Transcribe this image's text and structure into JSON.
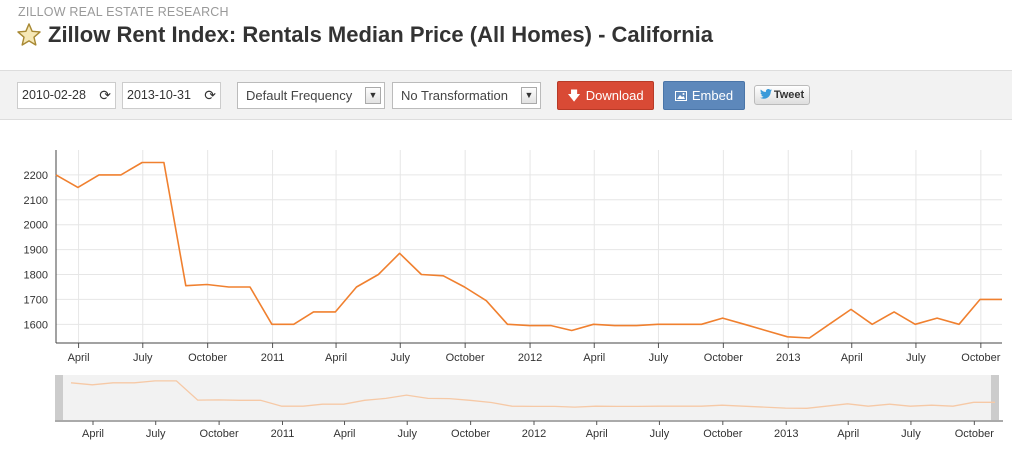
{
  "header": {
    "source": "ZILLOW REAL ESTATE RESEARCH",
    "title": "Zillow Rent Index: Rentals Median Price (All Homes) - California",
    "star_icon": "star-icon"
  },
  "toolbar": {
    "start_date": "2010-02-28",
    "end_date": "2013-10-31",
    "frequency": "Default Frequency",
    "transformation": "No Transformation",
    "download_label": "Download",
    "embed_label": "Embed",
    "tweet_label": "Tweet",
    "download_color": "#d94a35",
    "embed_color": "#5d88bb"
  },
  "chart_data": {
    "type": "line",
    "title": "",
    "xlabel": "",
    "ylabel": "",
    "line_color": "#f0802f",
    "y_ticks": [
      1600,
      1700,
      1800,
      1900,
      2000,
      2100,
      2200
    ],
    "x_tick_labels": [
      {
        "date": "2010-04-01",
        "label": "April"
      },
      {
        "date": "2010-07-01",
        "label": "July"
      },
      {
        "date": "2010-10-01",
        "label": "October"
      },
      {
        "date": "2011-01-01",
        "label": "2011"
      },
      {
        "date": "2011-04-01",
        "label": "April"
      },
      {
        "date": "2011-07-01",
        "label": "July"
      },
      {
        "date": "2011-10-01",
        "label": "October"
      },
      {
        "date": "2012-01-01",
        "label": "2012"
      },
      {
        "date": "2012-04-01",
        "label": "April"
      },
      {
        "date": "2012-07-01",
        "label": "July"
      },
      {
        "date": "2012-10-01",
        "label": "October"
      },
      {
        "date": "2013-01-01",
        "label": "2013"
      },
      {
        "date": "2013-04-01",
        "label": "April"
      },
      {
        "date": "2013-07-01",
        "label": "July"
      },
      {
        "date": "2013-10-01",
        "label": "October"
      }
    ],
    "x_range": [
      "2010-02-28",
      "2013-10-31"
    ],
    "ylim": [
      1525,
      2300
    ],
    "grid": true,
    "series": [
      {
        "points": [
          [
            "2010-02-28",
            2200
          ],
          [
            "2010-03-31",
            2150
          ],
          [
            "2010-04-30",
            2200
          ],
          [
            "2010-05-31",
            2200
          ],
          [
            "2010-06-30",
            2250
          ],
          [
            "2010-07-31",
            2250
          ],
          [
            "2010-08-31",
            1755
          ],
          [
            "2010-09-30",
            1760
          ],
          [
            "2010-10-31",
            1750
          ],
          [
            "2010-11-30",
            1750
          ],
          [
            "2010-12-31",
            1600
          ],
          [
            "2011-01-31",
            1600
          ],
          [
            "2011-02-28",
            1650
          ],
          [
            "2011-03-31",
            1650
          ],
          [
            "2011-04-30",
            1750
          ],
          [
            "2011-05-31",
            1800
          ],
          [
            "2011-06-30",
            1885
          ],
          [
            "2011-07-31",
            1800
          ],
          [
            "2011-08-31",
            1795
          ],
          [
            "2011-09-30",
            1750
          ],
          [
            "2011-10-31",
            1695
          ],
          [
            "2011-11-30",
            1600
          ],
          [
            "2011-12-31",
            1595
          ],
          [
            "2012-01-31",
            1595
          ],
          [
            "2012-02-29",
            1575
          ],
          [
            "2012-03-31",
            1600
          ],
          [
            "2012-04-30",
            1595
          ],
          [
            "2012-05-31",
            1595
          ],
          [
            "2012-06-30",
            1600
          ],
          [
            "2012-07-31",
            1600
          ],
          [
            "2012-08-31",
            1600
          ],
          [
            "2012-09-30",
            1625
          ],
          [
            "2012-10-31",
            1600
          ],
          [
            "2012-11-30",
            1575
          ],
          [
            "2012-12-31",
            1550
          ],
          [
            "2013-01-31",
            1545
          ],
          [
            "2013-02-28",
            1600
          ],
          [
            "2013-03-31",
            1660
          ],
          [
            "2013-04-30",
            1600
          ],
          [
            "2013-05-31",
            1650
          ],
          [
            "2013-06-30",
            1600
          ],
          [
            "2013-07-31",
            1625
          ],
          [
            "2013-08-31",
            1600
          ],
          [
            "2013-09-30",
            1700
          ],
          [
            "2013-10-31",
            1700
          ]
        ]
      }
    ],
    "navigator": {
      "x_range": [
        "2010-02-15",
        "2013-10-31"
      ],
      "line_color": "#f6c9a6",
      "handle_color": "#cccccc"
    }
  }
}
